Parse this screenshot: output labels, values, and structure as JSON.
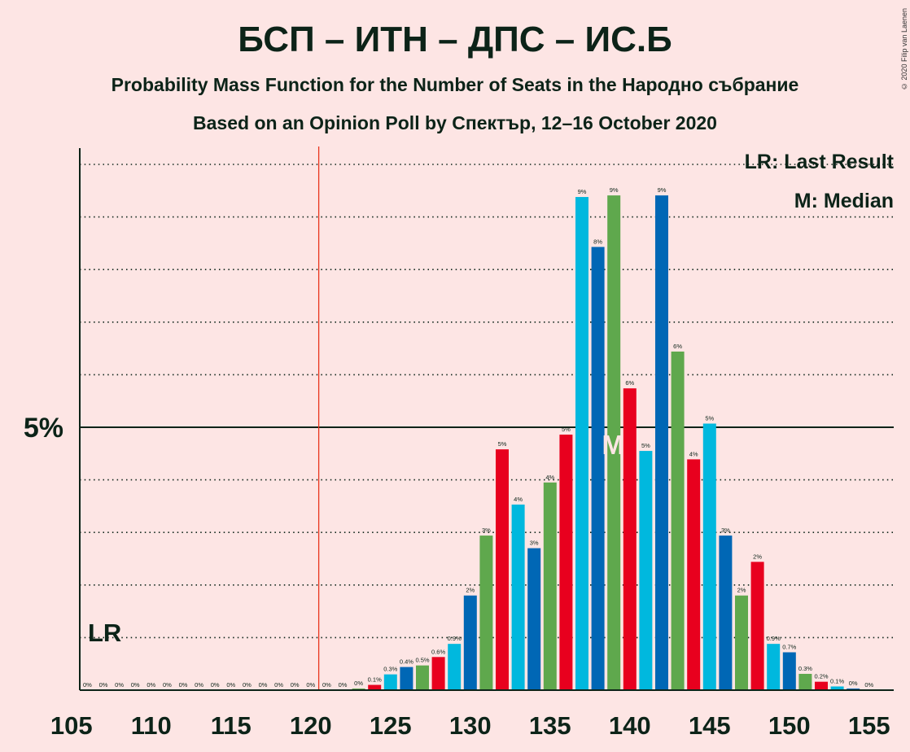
{
  "title": "БСП – ИТН – ДПС – ИС.Б",
  "subtitle": "Probability Mass Function for the Number of Seats in the Народно събрание",
  "subtitle2": "Based on an Opinion Poll by Спектър, 12–16 October 2020",
  "copyright": "© 2020 Filip van Laenen",
  "legend": {
    "last_result": "LR: Last Result",
    "median": "M: Median"
  },
  "markers": {
    "lr_label": "LR",
    "median_label": "M",
    "last_result_seat": 120.5,
    "median_seat": 139
  },
  "colors": {
    "background": "#FDE5E4",
    "red": "#E8001E",
    "blue": "#0067B5",
    "cyan": "#00B8DE",
    "green": "#5FA84D",
    "lr_line": "#E8351E",
    "text": "#0C2318"
  },
  "chart_data": {
    "type": "bar",
    "xlabel": "",
    "ylabel": "",
    "x_ticks": [
      105,
      110,
      115,
      120,
      125,
      130,
      135,
      140,
      145,
      150,
      155
    ],
    "y_ticks": [
      {
        "value": 5,
        "label": "5%"
      }
    ],
    "ylim": [
      0,
      10.3
    ],
    "grid": "dotted horizontal lines every 1%",
    "bars": [
      {
        "seat": 106,
        "value": 0,
        "label": "0%",
        "color": "blue"
      },
      {
        "seat": 107,
        "value": 0,
        "label": "0%",
        "color": "cyan"
      },
      {
        "seat": 108,
        "value": 0,
        "label": "0%",
        "color": "green"
      },
      {
        "seat": 109,
        "value": 0,
        "label": "0%",
        "color": "red"
      },
      {
        "seat": 110,
        "value": 0,
        "label": "0%",
        "color": "blue"
      },
      {
        "seat": 111,
        "value": 0,
        "label": "0%",
        "color": "cyan"
      },
      {
        "seat": 112,
        "value": 0,
        "label": "0%",
        "color": "green"
      },
      {
        "seat": 113,
        "value": 0,
        "label": "0%",
        "color": "red"
      },
      {
        "seat": 114,
        "value": 0,
        "label": "0%",
        "color": "blue"
      },
      {
        "seat": 115,
        "value": 0,
        "label": "0%",
        "color": "cyan"
      },
      {
        "seat": 116,
        "value": 0,
        "label": "0%",
        "color": "green"
      },
      {
        "seat": 117,
        "value": 0,
        "label": "0%",
        "color": "red"
      },
      {
        "seat": 118,
        "value": 0,
        "label": "0%",
        "color": "blue"
      },
      {
        "seat": 119,
        "value": 0,
        "label": "0%",
        "color": "cyan"
      },
      {
        "seat": 120,
        "value": 0,
        "label": "0%",
        "color": "green"
      },
      {
        "seat": 121,
        "value": 0,
        "label": "0%",
        "color": "red"
      },
      {
        "seat": 122,
        "value": 0,
        "label": "0%",
        "color": "blue"
      },
      {
        "seat": 123,
        "value": 0.03,
        "label": "0%",
        "color": "green"
      },
      {
        "seat": 124,
        "value": 0.1,
        "label": "0.1%",
        "color": "red"
      },
      {
        "seat": 125,
        "value": 0.3,
        "label": "0.3%",
        "color": "cyan"
      },
      {
        "seat": 126,
        "value": 0.44,
        "label": "0.4%",
        "color": "blue"
      },
      {
        "seat": 127,
        "value": 0.47,
        "label": "0.5%",
        "color": "green"
      },
      {
        "seat": 128,
        "value": 0.63,
        "label": "0.6%",
        "color": "red"
      },
      {
        "seat": 129,
        "value": 0.88,
        "label": "0.9%",
        "color": "cyan"
      },
      {
        "seat": 130,
        "value": 1.8,
        "label": "2%",
        "color": "blue"
      },
      {
        "seat": 131,
        "value": 2.94,
        "label": "3%",
        "color": "green"
      },
      {
        "seat": 132,
        "value": 4.58,
        "label": "5%",
        "color": "red"
      },
      {
        "seat": 133,
        "value": 3.53,
        "label": "4%",
        "color": "cyan"
      },
      {
        "seat": 134,
        "value": 2.7,
        "label": "3%",
        "color": "blue"
      },
      {
        "seat": 135,
        "value": 3.95,
        "label": "4%",
        "color": "green"
      },
      {
        "seat": 136,
        "value": 4.86,
        "label": "5%",
        "color": "red"
      },
      {
        "seat": 137,
        "value": 9.38,
        "label": "9%",
        "color": "cyan"
      },
      {
        "seat": 138,
        "value": 8.43,
        "label": "8%",
        "color": "blue"
      },
      {
        "seat": 139,
        "value": 9.41,
        "label": "9%",
        "color": "green"
      },
      {
        "seat": 140,
        "value": 5.74,
        "label": "6%",
        "color": "red"
      },
      {
        "seat": 141,
        "value": 4.55,
        "label": "5%",
        "color": "cyan"
      },
      {
        "seat": 142,
        "value": 9.41,
        "label": "9%",
        "color": "blue"
      },
      {
        "seat": 143,
        "value": 6.44,
        "label": "6%",
        "color": "green"
      },
      {
        "seat": 144,
        "value": 4.39,
        "label": "4%",
        "color": "red"
      },
      {
        "seat": 145,
        "value": 5.07,
        "label": "5%",
        "color": "cyan"
      },
      {
        "seat": 146,
        "value": 2.94,
        "label": "3%",
        "color": "blue"
      },
      {
        "seat": 147,
        "value": 1.8,
        "label": "2%",
        "color": "green"
      },
      {
        "seat": 148,
        "value": 2.44,
        "label": "2%",
        "color": "red"
      },
      {
        "seat": 149,
        "value": 0.88,
        "label": "0.9%",
        "color": "cyan"
      },
      {
        "seat": 150,
        "value": 0.72,
        "label": "0.7%",
        "color": "blue"
      },
      {
        "seat": 151,
        "value": 0.31,
        "label": "0.3%",
        "color": "green"
      },
      {
        "seat": 152,
        "value": 0.16,
        "label": "0.2%",
        "color": "red"
      },
      {
        "seat": 153,
        "value": 0.07,
        "label": "0.1%",
        "color": "cyan"
      },
      {
        "seat": 154,
        "value": 0.03,
        "label": "0%",
        "color": "blue"
      },
      {
        "seat": 155,
        "value": 0,
        "label": "0%",
        "color": "green"
      }
    ]
  }
}
